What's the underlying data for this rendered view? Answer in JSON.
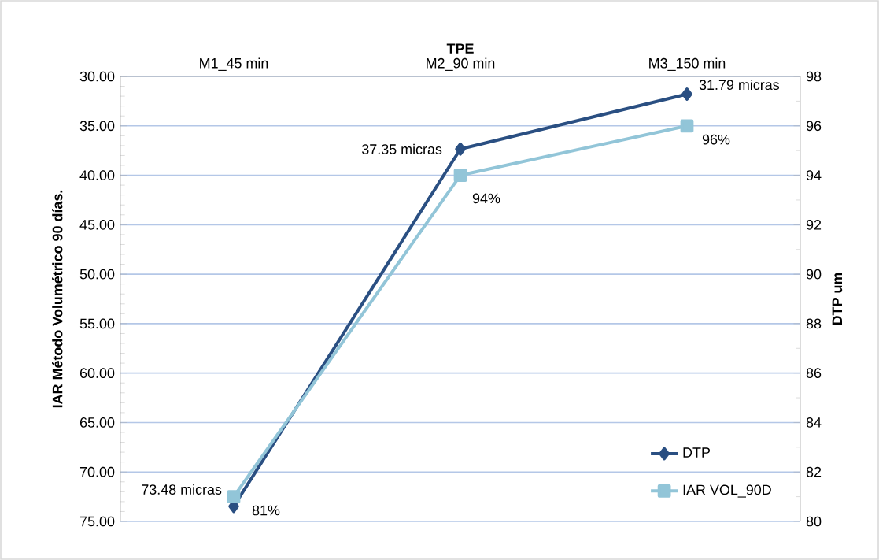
{
  "chart_data": {
    "type": "line",
    "xlabel": "TPE",
    "ylabel": "IAR Método Volumétrico 90 días.",
    "y2label": "DTP um",
    "categories": [
      "M1_45 min",
      "M2_90 min",
      "M3_150 min"
    ],
    "series": [
      {
        "name": "DTP",
        "color": "#2a4f82",
        "marker": "diamond",
        "values": [
          73.48,
          37.35,
          31.79
        ],
        "value_labels": [
          "73.48 micras",
          "37.35 micras",
          "31.79 micras"
        ]
      },
      {
        "name": "IAR VOL_90D",
        "color": "#92c5d8",
        "marker": "square",
        "axis": "y2",
        "values": [
          81,
          94,
          96
        ],
        "value_labels": [
          "81%",
          "94%",
          "96%"
        ]
      }
    ],
    "ylim": [
      75,
      30
    ],
    "yticks": [
      {
        "value": 30,
        "label": "30.00"
      },
      {
        "value": 35,
        "label": "35.00"
      },
      {
        "value": 40,
        "label": "40.00"
      },
      {
        "value": 45,
        "label": "45.00"
      },
      {
        "value": 50,
        "label": "50.00"
      },
      {
        "value": 55,
        "label": "55.00"
      },
      {
        "value": 60,
        "label": "60.00"
      },
      {
        "value": 65,
        "label": "65.00"
      },
      {
        "value": 70,
        "label": "70.00"
      },
      {
        "value": 75,
        "label": "75.00"
      }
    ],
    "y2lim": [
      80,
      98
    ],
    "y2ticks": [
      80,
      82,
      84,
      86,
      88,
      90,
      92,
      94,
      96,
      98
    ],
    "grid": "y",
    "legend": "bottom right"
  }
}
